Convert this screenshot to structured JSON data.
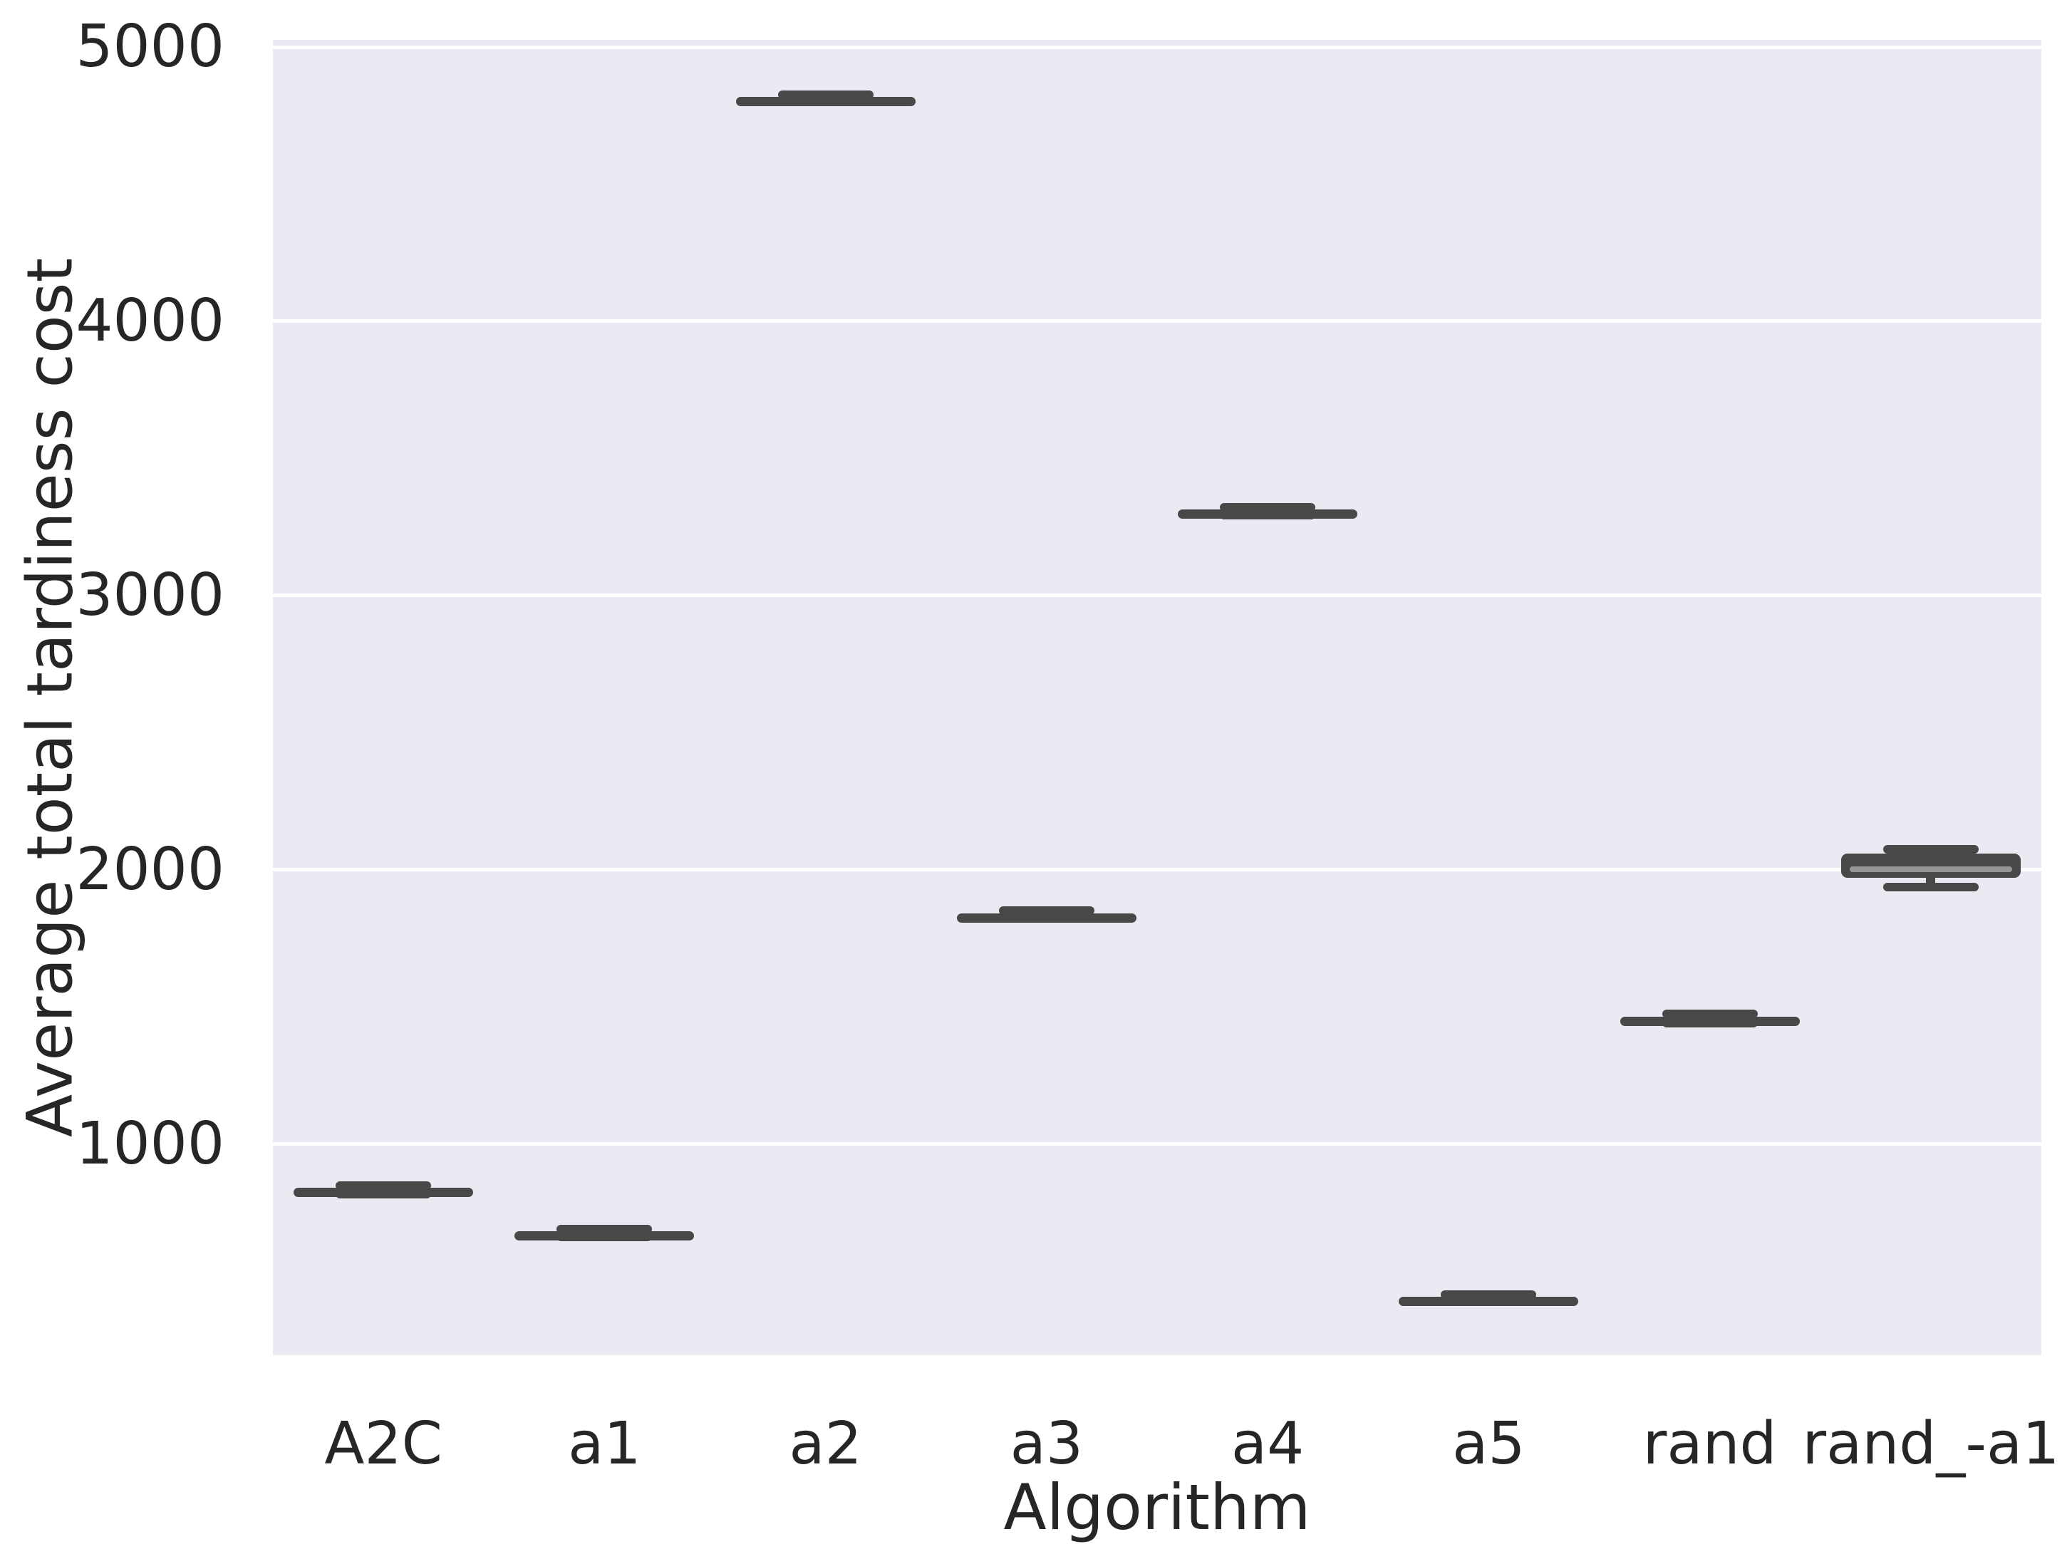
{
  "figure": {
    "background": "#ffffff",
    "axes_background": "#eaeaf2",
    "grid_color": "#ffffff",
    "box_color": "#484848",
    "median_color": "#969696",
    "text_color": "#262626"
  },
  "chart_data": {
    "type": "box",
    "title": "",
    "xlabel": "Algorithm",
    "ylabel": "Average total tardiness cost",
    "orientation": "vertical",
    "grid": "horizontal-white-gridlines",
    "legend": "none",
    "ylim": [
      230,
      5026
    ],
    "yticks": [
      1000,
      2000,
      3000,
      4000,
      5000
    ],
    "ytick_labels": [
      "1000",
      "2000",
      "3000",
      "4000",
      "5000"
    ],
    "categories": [
      "A2C",
      "a1",
      "a2",
      "a3",
      "a4",
      "a5",
      "rand",
      "rand_-a1"
    ],
    "boxes": [
      {
        "label": "A2C",
        "whisker_low": 818,
        "q1": 826,
        "median": 833,
        "q3": 840,
        "whisker_high": 848
      },
      {
        "label": "a1",
        "whisker_low": 662,
        "q1": 670,
        "median": 676,
        "q3": 682,
        "whisker_high": 690
      },
      {
        "label": "a2",
        "whisker_low": 4802,
        "q1": 4809,
        "median": 4814,
        "q3": 4819,
        "whisker_high": 4827
      },
      {
        "label": "a3",
        "whisker_low": 1822,
        "q1": 1830,
        "median": 1836,
        "q3": 1842,
        "whisker_high": 1850
      },
      {
        "label": "a4",
        "whisker_low": 3294,
        "q1": 3302,
        "median": 3308,
        "q3": 3314,
        "whisker_high": 3322
      },
      {
        "label": "a5",
        "whisker_low": 424,
        "q1": 432,
        "median": 438,
        "q3": 444,
        "whisker_high": 452
      },
      {
        "label": "rand",
        "whisker_low": 1441,
        "q1": 1452,
        "median": 1458,
        "q3": 1464,
        "whisker_high": 1475
      },
      {
        "label": "rand_-a1",
        "whisker_low": 1938,
        "q1": 1970,
        "median": 2003,
        "q3": 2060,
        "whisker_high": 2075
      }
    ]
  }
}
